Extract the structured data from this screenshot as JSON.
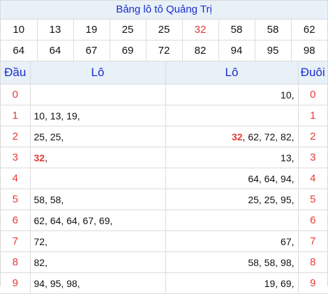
{
  "title": "Bảng lô tô Quảng Trị",
  "numbers": [
    [
      "10",
      "13",
      "19",
      "25",
      "25",
      "32",
      "58",
      "58",
      "62"
    ],
    [
      "64",
      "64",
      "67",
      "69",
      "72",
      "82",
      "94",
      "95",
      "98"
    ]
  ],
  "highlight_number": "32",
  "headers": {
    "dau": "Đầu",
    "lo_left": "Lô",
    "lo_right": "Lô",
    "duoi": "Đuôi"
  },
  "rows": [
    {
      "dau": "0",
      "left": "",
      "right": "10,",
      "duoi": "0"
    },
    {
      "dau": "1",
      "left": "10, 13, 19,",
      "right": "",
      "duoi": "1"
    },
    {
      "dau": "2",
      "left": "25, 25,",
      "right_hl": "32",
      "right": ", 62, 72, 82,",
      "duoi": "2"
    },
    {
      "dau": "3",
      "left_hl": "32",
      "left": ",",
      "right": "13,",
      "duoi": "3"
    },
    {
      "dau": "4",
      "left": "",
      "right": "64, 64, 94,",
      "duoi": "4"
    },
    {
      "dau": "5",
      "left": "58, 58,",
      "right": "25, 25, 95,",
      "duoi": "5"
    },
    {
      "dau": "6",
      "left": "62, 64, 64, 67, 69,",
      "right": "",
      "duoi": "6"
    },
    {
      "dau": "7",
      "left": "72,",
      "right": "67,",
      "duoi": "7"
    },
    {
      "dau": "8",
      "left": "82,",
      "right": "58, 58, 98,",
      "duoi": "8"
    },
    {
      "dau": "9",
      "left": "94, 95, 98,",
      "right": "19, 69,",
      "duoi": "9"
    }
  ]
}
